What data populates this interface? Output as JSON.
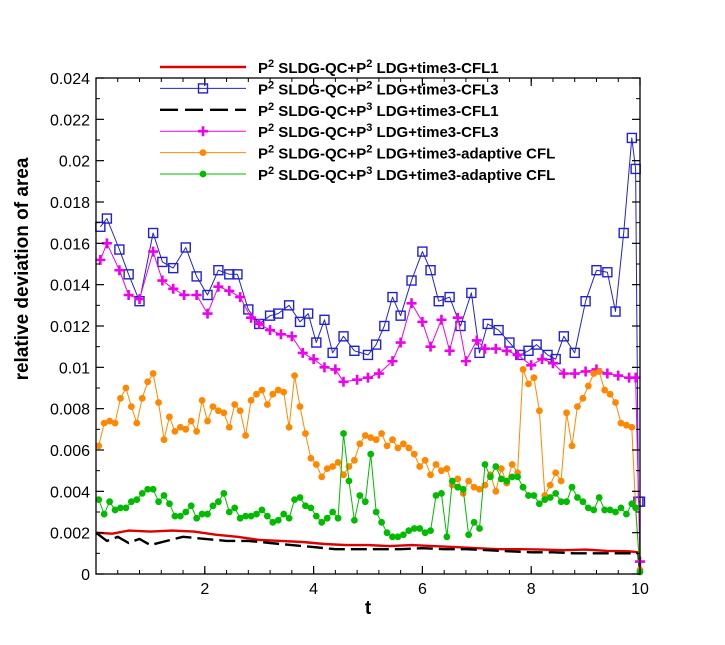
{
  "chart_data": {
    "type": "line",
    "title": "",
    "xlabel": "t",
    "ylabel": "relative deviation of area",
    "xlim": [
      0,
      10
    ],
    "ylim": [
      0,
      0.024
    ],
    "xticks": [
      "2",
      "4",
      "6",
      "8",
      "10"
    ],
    "xtick_values": [
      2,
      4,
      6,
      8,
      10
    ],
    "yticks": [
      "0",
      "0.002",
      "0.004",
      "0.006",
      "0.008",
      "0.01",
      "0.012",
      "0.014",
      "0.016",
      "0.018",
      "0.02",
      "0.022",
      "0.024"
    ],
    "ytick_values": [
      0,
      0.002,
      0.004,
      0.006,
      0.008,
      0.01,
      0.012,
      0.014,
      0.016,
      0.018,
      0.02,
      0.022,
      0.024
    ],
    "grid": false,
    "legend_position": "top-right",
    "series": [
      {
        "name": "SLDG-QC+P2 LDG+time3-CFL1",
        "legend_main": "P",
        "legend_sup1": "2",
        "legend_mid": " SLDG-QC+P",
        "legend_sup2": "2",
        "legend_tail": " LDG+time3-CFL1",
        "color": "#dd0000",
        "line_style": "solid",
        "marker": "none",
        "x": [
          0.0,
          0.3,
          0.6,
          1.0,
          1.4,
          1.8,
          2.2,
          2.6,
          3.0,
          3.4,
          3.8,
          4.2,
          4.6,
          5.0,
          5.4,
          5.8,
          6.2,
          6.6,
          7.0,
          7.4,
          7.8,
          8.2,
          8.6,
          9.0,
          9.4,
          9.8,
          9.97,
          10.0
        ],
        "y": [
          0.002,
          0.00195,
          0.0021,
          0.00205,
          0.0021,
          0.00205,
          0.0019,
          0.0018,
          0.00165,
          0.0016,
          0.00155,
          0.00145,
          0.0014,
          0.0014,
          0.00135,
          0.0014,
          0.00135,
          0.0013,
          0.00125,
          0.0012,
          0.0012,
          0.00118,
          0.00115,
          0.00118,
          0.00112,
          0.0011,
          0.00105,
          0.0001
        ]
      },
      {
        "name": "SLDG-QC+P2 LDG+time3-CFL3",
        "legend_main": "P",
        "legend_sup1": "2",
        "legend_mid": " SLDG-QC+P",
        "legend_sup2": "2",
        "legend_tail": " LDG+time3-CFL3",
        "color": "#2222cc",
        "line_style": "solid",
        "marker": "square",
        "x": [
          0.08,
          0.2,
          0.43,
          0.6,
          0.8,
          1.05,
          1.22,
          1.42,
          1.65,
          1.85,
          2.05,
          2.25,
          2.45,
          2.6,
          2.8,
          3.0,
          3.2,
          3.35,
          3.55,
          3.75,
          3.9,
          4.05,
          4.2,
          4.35,
          4.55,
          4.75,
          5.0,
          5.15,
          5.3,
          5.45,
          5.6,
          5.8,
          6.0,
          6.15,
          6.3,
          6.5,
          6.7,
          6.9,
          7.05,
          7.2,
          7.4,
          7.6,
          7.8,
          7.95,
          8.1,
          8.3,
          8.45,
          8.6,
          8.8,
          9.0,
          9.2,
          9.4,
          9.55,
          9.7,
          9.85,
          9.92,
          9.97,
          10.0
        ],
        "y": [
          0.0168,
          0.0172,
          0.0157,
          0.0145,
          0.0132,
          0.0165,
          0.0151,
          0.0148,
          0.0158,
          0.0144,
          0.0135,
          0.0147,
          0.0145,
          0.0145,
          0.0128,
          0.0121,
          0.0125,
          0.0126,
          0.013,
          0.0122,
          0.0126,
          0.0112,
          0.0123,
          0.0107,
          0.0115,
          0.0108,
          0.0106,
          0.0111,
          0.012,
          0.0134,
          0.0125,
          0.0142,
          0.0156,
          0.0147,
          0.0132,
          0.0134,
          0.012,
          0.0136,
          0.0107,
          0.0121,
          0.0118,
          0.0112,
          0.0106,
          0.0108,
          0.0111,
          0.0106,
          0.0104,
          0.0115,
          0.0107,
          0.0132,
          0.0147,
          0.0146,
          0.0127,
          0.0165,
          0.0211,
          0.0196,
          0.0035,
          0.0035
        ]
      },
      {
        "name": "SLDG-QC+P3 LDG+time3-CFL1",
        "legend_main": "P",
        "legend_sup1": "2",
        "legend_mid": " SLDG-QC+P",
        "legend_sup2": "3",
        "legend_tail": " LDG+time3-CFL1",
        "color": "#000000",
        "line_style": "dashed",
        "marker": "none",
        "x": [
          0.0,
          0.2,
          0.4,
          0.6,
          0.8,
          1.0,
          1.3,
          1.6,
          2.0,
          2.4,
          2.8,
          3.2,
          3.6,
          4.0,
          4.4,
          4.8,
          5.2,
          5.6,
          6.0,
          6.4,
          6.8,
          7.2,
          7.6,
          8.0,
          8.4,
          8.8,
          9.2,
          9.6,
          9.97,
          10.0
        ],
        "y": [
          0.002,
          0.0016,
          0.0018,
          0.0015,
          0.0017,
          0.0014,
          0.0016,
          0.0018,
          0.0017,
          0.0016,
          0.0016,
          0.0015,
          0.0014,
          0.0013,
          0.0012,
          0.0012,
          0.0012,
          0.0012,
          0.00125,
          0.0012,
          0.0012,
          0.00115,
          0.0011,
          0.00105,
          0.00105,
          0.001,
          0.001,
          0.001,
          0.001,
          0.0001
        ]
      },
      {
        "name": "SLDG-QC+P3 LDG+time3-CFL3",
        "legend_main": "P",
        "legend_sup1": "2",
        "legend_mid": " SLDG-QC+P",
        "legend_sup2": "3",
        "legend_tail": " LDG+time3-CFL3",
        "color": "#ee00ee",
        "line_style": "solid",
        "marker": "plus",
        "x": [
          0.08,
          0.2,
          0.43,
          0.6,
          0.8,
          1.05,
          1.22,
          1.42,
          1.62,
          1.85,
          2.05,
          2.25,
          2.45,
          2.65,
          2.85,
          3.0,
          3.2,
          3.4,
          3.6,
          3.8,
          4.0,
          4.2,
          4.4,
          4.55,
          4.8,
          5.0,
          5.2,
          5.45,
          5.6,
          5.8,
          6.0,
          6.15,
          6.35,
          6.5,
          6.65,
          6.8,
          7.0,
          7.15,
          7.35,
          7.55,
          7.75,
          8.0,
          8.2,
          8.4,
          8.6,
          8.8,
          9.0,
          9.2,
          9.4,
          9.6,
          9.8,
          9.92,
          10.0
        ],
        "y": [
          0.0152,
          0.016,
          0.0147,
          0.0135,
          0.0133,
          0.0156,
          0.0142,
          0.0138,
          0.0135,
          0.0135,
          0.0126,
          0.0139,
          0.0137,
          0.0134,
          0.0124,
          0.0121,
          0.0118,
          0.0116,
          0.0115,
          0.0107,
          0.0104,
          0.01,
          0.0099,
          0.0093,
          0.0094,
          0.0095,
          0.0097,
          0.0103,
          0.0112,
          0.0131,
          0.0122,
          0.011,
          0.0123,
          0.0108,
          0.0124,
          0.0103,
          0.0113,
          0.0109,
          0.0109,
          0.0108,
          0.0106,
          0.0101,
          0.0104,
          0.0102,
          0.0097,
          0.0097,
          0.0098,
          0.0099,
          0.0097,
          0.0096,
          0.0095,
          0.0095,
          0.0006
        ]
      },
      {
        "name": "SLDG-QC+P2 LDG+time3-adaptive CFL",
        "legend_main": "P",
        "legend_sup1": "2",
        "legend_mid": " SLDG-QC+P",
        "legend_sup2": "2",
        "legend_tail": " LDG+time3-adaptive CFL",
        "color": "#ff8800",
        "line_style": "solid",
        "marker": "circle",
        "x": [
          0.05,
          0.15,
          0.25,
          0.35,
          0.45,
          0.55,
          0.65,
          0.75,
          0.85,
          0.95,
          1.05,
          1.15,
          1.25,
          1.35,
          1.45,
          1.55,
          1.65,
          1.75,
          1.85,
          1.95,
          2.05,
          2.15,
          2.25,
          2.35,
          2.45,
          2.55,
          2.65,
          2.75,
          2.85,
          2.95,
          3.05,
          3.15,
          3.25,
          3.35,
          3.45,
          3.55,
          3.65,
          3.75,
          3.85,
          3.95,
          4.05,
          4.15,
          4.25,
          4.35,
          4.45,
          4.55,
          4.65,
          4.75,
          4.85,
          4.95,
          5.05,
          5.15,
          5.25,
          5.35,
          5.45,
          5.55,
          5.65,
          5.75,
          5.85,
          5.95,
          6.05,
          6.15,
          6.25,
          6.35,
          6.45,
          6.55,
          6.65,
          6.75,
          6.85,
          6.95,
          7.05,
          7.15,
          7.25,
          7.35,
          7.45,
          7.55,
          7.65,
          7.75,
          7.85,
          7.95,
          8.05,
          8.15,
          8.25,
          8.35,
          8.45,
          8.55,
          8.65,
          8.75,
          8.85,
          8.95,
          9.05,
          9.15,
          9.25,
          9.35,
          9.45,
          9.55,
          9.65,
          9.75,
          9.85,
          9.92,
          10.0
        ],
        "y": [
          0.0062,
          0.0073,
          0.0074,
          0.0073,
          0.0085,
          0.009,
          0.0081,
          0.0073,
          0.0085,
          0.0093,
          0.0097,
          0.0083,
          0.0065,
          0.0076,
          0.0069,
          0.0071,
          0.007,
          0.0074,
          0.0069,
          0.0084,
          0.0074,
          0.0081,
          0.0079,
          0.0078,
          0.0071,
          0.0082,
          0.0079,
          0.0067,
          0.0084,
          0.0087,
          0.0089,
          0.0082,
          0.0087,
          0.0089,
          0.0088,
          0.0071,
          0.0096,
          0.0081,
          0.0068,
          0.0056,
          0.0053,
          0.0047,
          0.0051,
          0.0052,
          0.0054,
          0.0048,
          0.0052,
          0.0055,
          0.0063,
          0.0067,
          0.0066,
          0.0065,
          0.0068,
          0.0062,
          0.0065,
          0.0061,
          0.0063,
          0.0061,
          0.0058,
          0.0052,
          0.0055,
          0.0048,
          0.0053,
          0.005,
          0.0051,
          0.0043,
          0.0046,
          0.0039,
          0.0045,
          0.0042,
          0.0041,
          0.0043,
          0.0048,
          0.004,
          0.0051,
          0.0044,
          0.0053,
          0.0049,
          0.0099,
          0.0092,
          0.0095,
          0.0079,
          0.0038,
          0.0043,
          0.0049,
          0.0045,
          0.0078,
          0.0062,
          0.0081,
          0.0085,
          0.0091,
          0.0097,
          0.0098,
          0.0089,
          0.0087,
          0.0083,
          0.0073,
          0.0072,
          0.0071,
          0.0032,
          0.0002
        ]
      },
      {
        "name": "SLDG-QC+P3 LDG+time3-adaptive CFL",
        "legend_main": "P",
        "legend_sup1": "2",
        "legend_mid": " SLDG-QC+P",
        "legend_sup2": "3",
        "legend_tail": " LDG+time3-adaptive CFL",
        "color": "#00bb00",
        "line_style": "solid",
        "marker": "circle",
        "x": [
          0.05,
          0.15,
          0.25,
          0.35,
          0.45,
          0.55,
          0.65,
          0.75,
          0.85,
          0.95,
          1.05,
          1.15,
          1.25,
          1.35,
          1.45,
          1.55,
          1.65,
          1.75,
          1.85,
          1.95,
          2.05,
          2.15,
          2.25,
          2.35,
          2.45,
          2.55,
          2.65,
          2.75,
          2.85,
          2.95,
          3.05,
          3.15,
          3.25,
          3.35,
          3.45,
          3.55,
          3.65,
          3.75,
          3.85,
          3.95,
          4.05,
          4.15,
          4.25,
          4.35,
          4.45,
          4.55,
          4.65,
          4.75,
          4.85,
          4.95,
          5.05,
          5.15,
          5.25,
          5.35,
          5.45,
          5.55,
          5.65,
          5.75,
          5.85,
          5.95,
          6.05,
          6.15,
          6.25,
          6.35,
          6.45,
          6.55,
          6.65,
          6.75,
          6.85,
          6.95,
          7.05,
          7.15,
          7.25,
          7.35,
          7.45,
          7.55,
          7.65,
          7.75,
          7.85,
          7.95,
          8.05,
          8.15,
          8.25,
          8.35,
          8.45,
          8.55,
          8.65,
          8.75,
          8.85,
          8.95,
          9.05,
          9.15,
          9.25,
          9.35,
          9.45,
          9.55,
          9.65,
          9.75,
          9.85,
          9.92,
          10.0
        ],
        "y": [
          0.0036,
          0.0029,
          0.0035,
          0.0031,
          0.0032,
          0.0032,
          0.0035,
          0.0036,
          0.0039,
          0.0041,
          0.0041,
          0.0035,
          0.0038,
          0.0034,
          0.0028,
          0.0028,
          0.003,
          0.0033,
          0.0027,
          0.0029,
          0.0029,
          0.0033,
          0.0035,
          0.0039,
          0.003,
          0.0032,
          0.0027,
          0.0028,
          0.0028,
          0.0029,
          0.0031,
          0.0028,
          0.0025,
          0.0026,
          0.0029,
          0.0027,
          0.0036,
          0.0037,
          0.0033,
          0.0032,
          0.0028,
          0.0025,
          0.0027,
          0.003,
          0.0027,
          0.0068,
          0.0045,
          0.0026,
          0.0038,
          0.0035,
          0.0058,
          0.003,
          0.0025,
          0.002,
          0.0018,
          0.0018,
          0.0019,
          0.0021,
          0.0022,
          0.0022,
          0.002,
          0.0021,
          0.0038,
          0.0039,
          0.0018,
          0.0045,
          0.0042,
          0.0041,
          0.0019,
          0.0025,
          0.0022,
          0.0053,
          0.0047,
          0.0052,
          0.0046,
          0.0045,
          0.0047,
          0.0047,
          0.0042,
          0.0038,
          0.0038,
          0.0034,
          0.0036,
          0.0037,
          0.0039,
          0.0035,
          0.0035,
          0.0042,
          0.0037,
          0.0035,
          0.0032,
          0.0031,
          0.0037,
          0.0031,
          0.0031,
          0.003,
          0.0032,
          0.0029,
          0.0034,
          0.0032,
          0.0001
        ]
      }
    ]
  }
}
